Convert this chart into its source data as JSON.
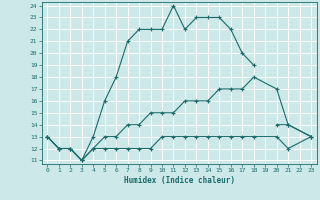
{
  "title": "",
  "xlabel": "Humidex (Indice chaleur)",
  "bg_color": "#cce8e8",
  "line_color": "#1a6b6b",
  "grid_color": "#ffffff",
  "xlim": [
    -0.5,
    23.5
  ],
  "ylim": [
    10.7,
    24.3
  ],
  "xticks": [
    0,
    1,
    2,
    3,
    4,
    5,
    6,
    7,
    8,
    9,
    10,
    11,
    12,
    13,
    14,
    15,
    16,
    17,
    18,
    19,
    20,
    21,
    22,
    23
  ],
  "yticks": [
    11,
    12,
    13,
    14,
    15,
    16,
    17,
    18,
    19,
    20,
    21,
    22,
    23,
    24
  ],
  "series1": {
    "x": [
      0,
      1,
      2,
      3,
      4,
      5,
      6,
      7,
      8,
      9,
      10,
      11,
      12,
      13,
      14,
      15,
      16,
      17,
      18,
      19,
      20,
      21,
      23
    ],
    "y": [
      13,
      12,
      12,
      11,
      13,
      16,
      18,
      21,
      22,
      22,
      22,
      24,
      22,
      23,
      23,
      23,
      22,
      20,
      19,
      null,
      14,
      14,
      13
    ]
  },
  "series2": {
    "x": [
      0,
      1,
      2,
      3,
      4,
      5,
      6,
      7,
      8,
      9,
      10,
      11,
      12,
      13,
      14,
      15,
      16,
      17,
      18,
      20,
      21,
      23
    ],
    "y": [
      13,
      12,
      12,
      11,
      12,
      13,
      13,
      14,
      14,
      15,
      15,
      15,
      16,
      16,
      16,
      17,
      17,
      17,
      18,
      17,
      14,
      13
    ]
  },
  "series3": {
    "x": [
      0,
      1,
      2,
      3,
      4,
      5,
      6,
      7,
      8,
      9,
      10,
      11,
      12,
      13,
      14,
      15,
      16,
      17,
      18,
      20,
      21,
      23
    ],
    "y": [
      13,
      12,
      12,
      11,
      12,
      12,
      12,
      12,
      12,
      12,
      13,
      13,
      13,
      13,
      13,
      13,
      13,
      13,
      13,
      13,
      12,
      13
    ]
  }
}
